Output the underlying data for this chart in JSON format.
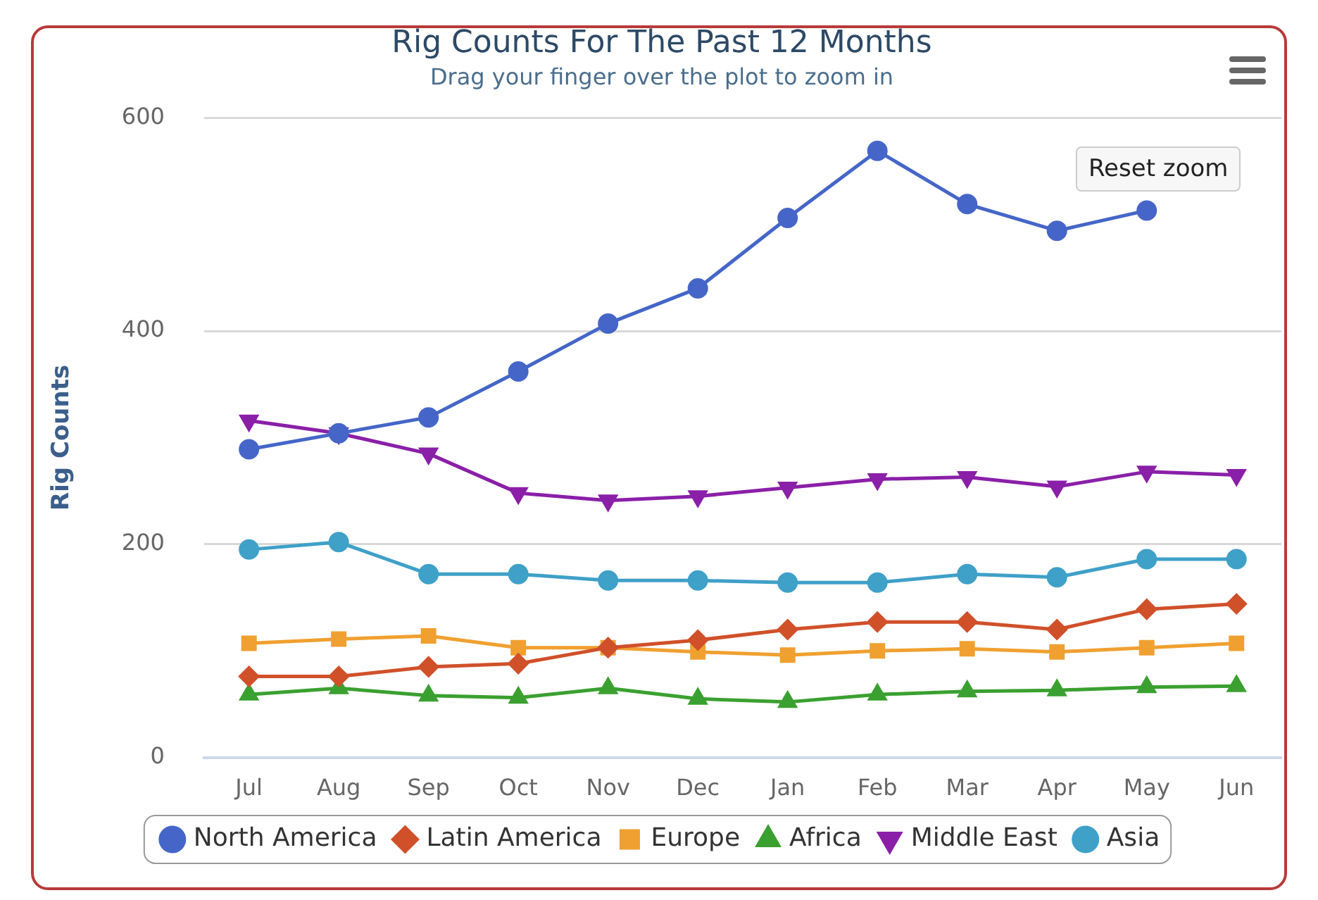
{
  "chart_data": {
    "type": "line",
    "title": "Rig Counts For The Past 12 Months",
    "subtitle": "Drag your finger over the plot to zoom in",
    "ylabel": "Rig Counts",
    "categories": [
      "Jul",
      "Aug",
      "Sep",
      "Oct",
      "Nov",
      "Dec",
      "Jan",
      "Feb",
      "Mar",
      "Apr",
      "May",
      "Jun"
    ],
    "series": [
      {
        "name": "North America",
        "color": "#4566c8",
        "marker": "circle",
        "values": [
          289,
          304,
          319,
          362,
          407,
          440,
          506,
          569,
          519,
          494,
          513,
          null
        ]
      },
      {
        "name": "Latin America",
        "color": "#d0502a",
        "marker": "diamond",
        "values": [
          76,
          76,
          85,
          88,
          103,
          110,
          120,
          127,
          127,
          120,
          139,
          144
        ]
      },
      {
        "name": "Europe",
        "color": "#f0a030",
        "marker": "square",
        "values": [
          107,
          111,
          114,
          103,
          103,
          99,
          96,
          100,
          102,
          99,
          103,
          107
        ]
      },
      {
        "name": "Africa",
        "color": "#3aa030",
        "marker": "triangle",
        "values": [
          59,
          65,
          58,
          56,
          65,
          55,
          52,
          59,
          62,
          63,
          66,
          67
        ]
      },
      {
        "name": "Middle East",
        "color": "#8a1fa8",
        "marker": "triangle-down",
        "values": [
          316,
          304,
          285,
          248,
          241,
          245,
          253,
          261,
          263,
          254,
          268,
          265
        ]
      },
      {
        "name": "Asia",
        "color": "#3fa0c8",
        "marker": "circle",
        "values": [
          195,
          202,
          172,
          172,
          166,
          166,
          164,
          164,
          172,
          169,
          186,
          186
        ]
      }
    ],
    "ylim": [
      0,
      600
    ],
    "yticks": [
      0,
      200,
      400,
      600
    ],
    "grid": "y",
    "legend": "bottom",
    "line_style": "solid",
    "annotations": [
      "Reset zoom"
    ]
  }
}
